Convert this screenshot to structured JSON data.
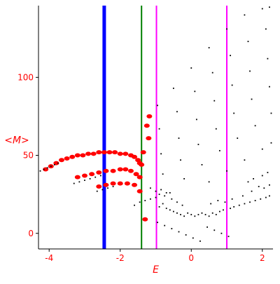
{
  "chart_data": {
    "type": "scatter",
    "xlabel": "E",
    "ylabel": "<M>",
    "xlim": [
      -4.3,
      2.3
    ],
    "ylim": [
      -10,
      146
    ],
    "x_ticks": [
      -4,
      -2,
      0,
      2
    ],
    "x_tick_labels": [
      "-4",
      "-2",
      "0",
      "2"
    ],
    "y_ticks": [
      0,
      50,
      100
    ],
    "y_tick_labels": [
      "0",
      "50",
      "100"
    ],
    "vertical_lines": [
      {
        "x": -2.45,
        "color": "#0000ff"
      },
      {
        "x": -1.4,
        "color": "#008000"
      },
      {
        "x": -0.98,
        "color": "#ff00ff"
      },
      {
        "x": 1.0,
        "color": "#ff00ff"
      }
    ],
    "colors": {
      "axis": "#ff0000",
      "axis_line": "#000000",
      "black_points": "#000000",
      "red_points": "#ff0000"
    },
    "series": [
      {
        "color": "#ff0000",
        "points": [
          [
            -4.1,
            41
          ],
          [
            -3.95,
            43
          ],
          [
            -3.8,
            45
          ],
          [
            -3.65,
            47
          ],
          [
            -3.5,
            48
          ],
          [
            -3.35,
            49
          ],
          [
            -3.2,
            50
          ],
          [
            -3.05,
            50
          ],
          [
            -2.9,
            51
          ],
          [
            -2.75,
            51
          ],
          [
            -2.6,
            52
          ],
          [
            -2.45,
            52
          ],
          [
            -2.3,
            52
          ],
          [
            -2.15,
            52
          ],
          [
            -2.0,
            51
          ],
          [
            -1.85,
            51
          ],
          [
            -1.7,
            50
          ],
          [
            -1.6,
            49
          ],
          [
            -1.5,
            47
          ],
          [
            -1.45,
            45
          ],
          [
            -3.2,
            36
          ],
          [
            -3.0,
            37
          ],
          [
            -2.8,
            38
          ],
          [
            -2.6,
            39
          ],
          [
            -2.4,
            40
          ],
          [
            -2.2,
            40
          ],
          [
            -2.0,
            41
          ],
          [
            -1.85,
            41
          ],
          [
            -1.7,
            40
          ],
          [
            -1.55,
            38
          ],
          [
            -1.45,
            36
          ],
          [
            -2.6,
            30
          ],
          [
            -2.4,
            31
          ],
          [
            -2.2,
            32
          ],
          [
            -2.0,
            32
          ],
          [
            -1.8,
            32
          ],
          [
            -1.6,
            31
          ],
          [
            -1.4,
            44
          ],
          [
            -1.45,
            27
          ],
          [
            -1.3,
            9
          ],
          [
            -1.35,
            52
          ],
          [
            -1.25,
            69
          ],
          [
            -1.18,
            75
          ],
          [
            -1.2,
            61
          ]
        ]
      },
      {
        "color": "#000000",
        "points": [
          [
            -4.25,
            40
          ],
          [
            -4.15,
            41
          ],
          [
            -4.05,
            42
          ],
          [
            -3.95,
            43
          ],
          [
            -3.85,
            44
          ],
          [
            -3.75,
            45
          ],
          [
            -3.3,
            32
          ],
          [
            -3.15,
            33
          ],
          [
            -3.0,
            34
          ],
          [
            -2.85,
            35
          ],
          [
            -2.7,
            36
          ],
          [
            -2.55,
            37
          ],
          [
            -2.65,
            27
          ],
          [
            -2.5,
            28
          ],
          [
            -2.35,
            29
          ],
          [
            -2.2,
            30
          ],
          [
            -1.15,
            29
          ],
          [
            -1.0,
            27
          ],
          [
            -0.85,
            28
          ],
          [
            -0.7,
            26
          ],
          [
            -0.55,
            22
          ],
          [
            -0.4,
            20
          ],
          [
            -0.25,
            18
          ],
          [
            -1.6,
            18
          ],
          [
            -1.45,
            20
          ],
          [
            -1.3,
            21
          ],
          [
            -1.15,
            22
          ],
          [
            -1.0,
            23
          ],
          [
            -0.9,
            17
          ],
          [
            -0.8,
            19
          ],
          [
            -0.7,
            16
          ],
          [
            -0.6,
            15
          ],
          [
            -0.5,
            14
          ],
          [
            -0.4,
            13
          ],
          [
            -0.3,
            12
          ],
          [
            -0.2,
            11
          ],
          [
            -0.1,
            13
          ],
          [
            0.0,
            12
          ],
          [
            0.1,
            11
          ],
          [
            0.2,
            12
          ],
          [
            0.3,
            13
          ],
          [
            0.4,
            12
          ],
          [
            0.5,
            11
          ],
          [
            0.6,
            13
          ],
          [
            0.7,
            12
          ],
          [
            0.8,
            14
          ],
          [
            0.9,
            15
          ],
          [
            1.1,
            16
          ],
          [
            1.2,
            17
          ],
          [
            1.35,
            18
          ],
          [
            1.5,
            19
          ],
          [
            1.65,
            20
          ],
          [
            1.8,
            21
          ],
          [
            1.95,
            22
          ],
          [
            2.1,
            23
          ],
          [
            2.2,
            24
          ],
          [
            -0.95,
            7
          ],
          [
            -0.75,
            5
          ],
          [
            -0.55,
            3
          ],
          [
            -0.35,
            1
          ],
          [
            -0.15,
            -1
          ],
          [
            0.05,
            -3
          ],
          [
            0.25,
            -5
          ],
          [
            0.45,
            4
          ],
          [
            0.65,
            2
          ],
          [
            0.85,
            0
          ],
          [
            1.05,
            -2
          ],
          [
            -0.9,
            25
          ],
          [
            -0.75,
            24
          ],
          [
            -0.6,
            26
          ],
          [
            0.55,
            19
          ],
          [
            0.75,
            21
          ],
          [
            0.95,
            20
          ],
          [
            1.15,
            22
          ],
          [
            1.45,
            24
          ],
          [
            1.7,
            27
          ],
          [
            1.9,
            30
          ],
          [
            2.05,
            29
          ],
          [
            2.2,
            31
          ],
          [
            1.6,
            33
          ],
          [
            1.75,
            35
          ],
          [
            2.0,
            37
          ],
          [
            2.15,
            39
          ],
          [
            -0.95,
            82
          ],
          [
            -0.5,
            93
          ],
          [
            0.0,
            106
          ],
          [
            0.5,
            119
          ],
          [
            1.0,
            131
          ],
          [
            1.5,
            140
          ],
          [
            2.0,
            144
          ],
          [
            2.2,
            145
          ],
          [
            -0.9,
            67
          ],
          [
            -0.4,
            78
          ],
          [
            0.1,
            91
          ],
          [
            0.6,
            103
          ],
          [
            1.1,
            114
          ],
          [
            1.6,
            123
          ],
          [
            2.1,
            131
          ],
          [
            -0.85,
            51
          ],
          [
            -0.35,
            61
          ],
          [
            0.15,
            73
          ],
          [
            0.65,
            85
          ],
          [
            1.15,
            95
          ],
          [
            1.65,
            104
          ],
          [
            2.15,
            112
          ],
          [
            -0.8,
            38
          ],
          [
            -0.3,
            47
          ],
          [
            0.2,
            57
          ],
          [
            0.7,
            67
          ],
          [
            1.2,
            77
          ],
          [
            1.7,
            86
          ],
          [
            2.2,
            94
          ],
          [
            -0.2,
            35
          ],
          [
            0.3,
            44
          ],
          [
            0.8,
            53
          ],
          [
            1.3,
            61
          ],
          [
            1.8,
            69
          ],
          [
            2.25,
            77
          ],
          [
            0.5,
            33
          ],
          [
            1.0,
            40
          ],
          [
            1.5,
            47
          ],
          [
            2.0,
            54
          ],
          [
            2.25,
            58
          ]
        ]
      }
    ]
  }
}
